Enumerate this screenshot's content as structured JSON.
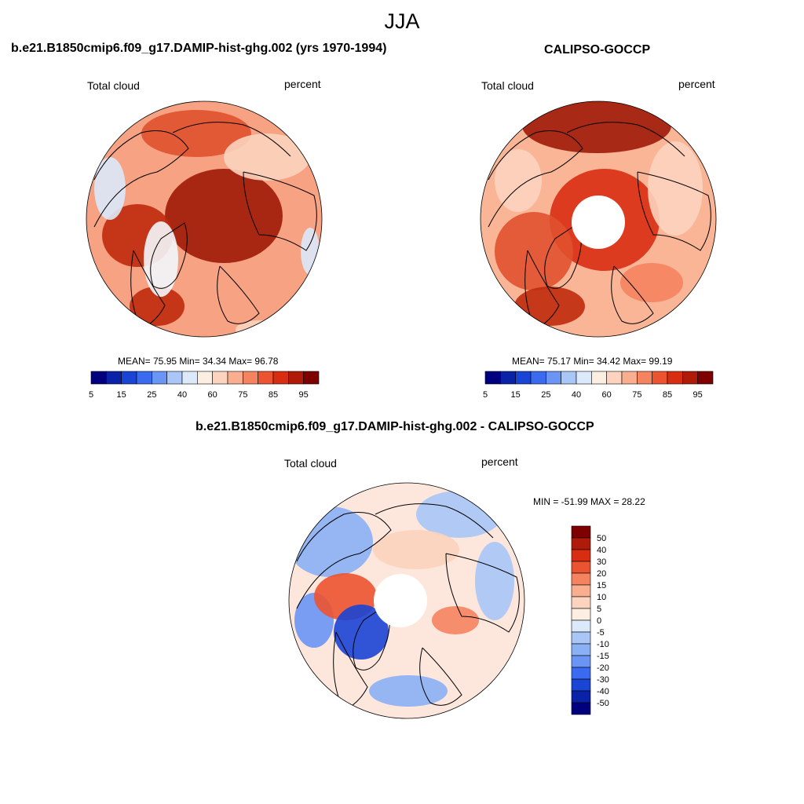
{
  "title": "JJA",
  "panels": [
    {
      "id": "model",
      "title": "b.e21.B1850cmip6.f09_g17.DAMIP-hist-ghg.002 (yrs 1970-1994)",
      "left_label": "Total cloud",
      "right_label": "percent",
      "stats": "MEAN=  75.95  Min=  34.34  Max=  96.78",
      "has_hole": false
    },
    {
      "id": "obs",
      "title": "CALIPSO-GOCCP",
      "left_label": "Total cloud",
      "right_label": "percent",
      "stats": "MEAN=  75.17  Min=  34.42  Max=  99.19",
      "has_hole": true
    },
    {
      "id": "diff",
      "title": "b.e21.B1850cmip6.f09_g17.DAMIP-hist-ghg.002 - CALIPSO-GOCCP",
      "left_label": "Total cloud",
      "right_label": "percent",
      "stats": "MIN = -51.99 MAX =  28.22",
      "has_hole": true
    }
  ],
  "colorbar_horizontal": {
    "colors": [
      "#00007f",
      "#0a22a8",
      "#1a44d4",
      "#3a6af0",
      "#6a95f5",
      "#a9c6f7",
      "#dbe9fa",
      "#fdeee2",
      "#fcd3be",
      "#f9ae8f",
      "#f5835f",
      "#ec5330",
      "#d92d12",
      "#b01a08",
      "#7f0000"
    ],
    "tick_labels": [
      "5",
      "15",
      "25",
      "40",
      "60",
      "75",
      "85",
      "95"
    ]
  },
  "colorbar_vertical": {
    "colors": [
      "#7f0000",
      "#b01a08",
      "#d92d12",
      "#ec5330",
      "#f5835f",
      "#f9ae8f",
      "#fcd3be",
      "#fdeee2",
      "#dbe9fa",
      "#a9c6f7",
      "#8ab0f5",
      "#6a95f5",
      "#3a6af0",
      "#1a44d4",
      "#0a22a8",
      "#00007f"
    ],
    "tick_labels": [
      "50",
      "40",
      "30",
      "20",
      "15",
      "10",
      "5",
      "0",
      "-5",
      "-10",
      "-15",
      "-20",
      "-30",
      "-40",
      "-50"
    ]
  }
}
